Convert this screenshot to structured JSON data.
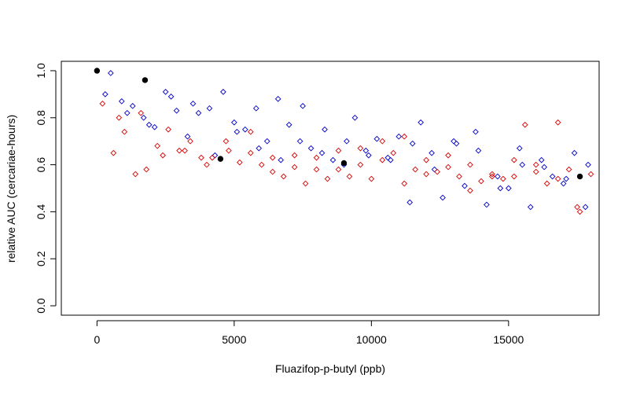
{
  "chart_data": {
    "type": "scatter",
    "xlabel": "Fluazifop-p-butyl (ppb)",
    "ylabel": "relative AUC (cercariae-hours)",
    "xlim": [
      -1300,
      18300
    ],
    "ylim": [
      -0.04,
      1.04
    ],
    "xticks": [
      0,
      5000,
      10000,
      15000
    ],
    "xtick_labels": [
      "0",
      "5000",
      "10000",
      "15000"
    ],
    "yticks": [
      0.0,
      0.2,
      0.4,
      0.6,
      0.8,
      1.0
    ],
    "ytick_labels": [
      "0.0",
      "0.2",
      "0.4",
      "0.6",
      "0.8",
      "1.0"
    ],
    "grid": false,
    "legend": "none",
    "colors": {
      "blue": "#0000cc",
      "red": "#dd0000",
      "observed": "#000000"
    },
    "series": [
      {
        "marker": "open-diamond",
        "color": "blue",
        "x": [
          500,
          900,
          1300,
          1700,
          2100,
          2500,
          2900,
          3300,
          3700,
          4100,
          4600,
          5000,
          5400,
          5800,
          6200,
          6600,
          7000,
          7400,
          7800,
          8200,
          8600,
          9000,
          9400,
          9800,
          10200,
          10600,
          11000,
          11400,
          11800,
          12200,
          12600,
          13000,
          13400,
          13800,
          14200,
          14600,
          15000,
          15400,
          15800,
          16200,
          16600,
          17000,
          17400,
          17800,
          300,
          1100,
          1900,
          2700,
          3500,
          4300,
          5100,
          5900,
          6700,
          7500,
          8300,
          9100,
          9900,
          10700,
          11500,
          12300,
          13100,
          13900,
          14700,
          15500,
          16300,
          17100,
          17900
        ],
        "y": [
          0.99,
          0.87,
          0.85,
          0.8,
          0.76,
          0.91,
          0.83,
          0.72,
          0.82,
          0.84,
          0.91,
          0.78,
          0.75,
          0.84,
          0.7,
          0.88,
          0.77,
          0.7,
          0.67,
          0.65,
          0.62,
          0.6,
          0.8,
          0.66,
          0.71,
          0.63,
          0.72,
          0.44,
          0.78,
          0.65,
          0.46,
          0.7,
          0.51,
          0.74,
          0.43,
          0.55,
          0.5,
          0.67,
          0.42,
          0.62,
          0.55,
          0.52,
          0.65,
          0.42,
          0.9,
          0.82,
          0.77,
          0.89,
          0.86,
          0.64,
          0.74,
          0.67,
          0.62,
          0.85,
          0.75,
          0.7,
          0.64,
          0.62,
          0.69,
          0.58,
          0.69,
          0.66,
          0.5,
          0.6,
          0.59,
          0.54,
          0.6
        ]
      },
      {
        "marker": "open-diamond",
        "color": "red",
        "x": [
          200,
          600,
          1000,
          1400,
          1800,
          2200,
          2600,
          3000,
          3400,
          3800,
          4200,
          4700,
          5200,
          5600,
          6000,
          6400,
          6800,
          7200,
          7600,
          8000,
          8400,
          8800,
          9200,
          9600,
          10000,
          10400,
          10800,
          11200,
          11600,
          12000,
          12400,
          12800,
          13200,
          13600,
          14000,
          14400,
          14800,
          15200,
          15600,
          16000,
          16400,
          16800,
          17200,
          17600,
          18000,
          800,
          1600,
          2400,
          3200,
          4000,
          4800,
          5600,
          6400,
          7200,
          8000,
          8800,
          9600,
          10400,
          11200,
          12000,
          12800,
          13600,
          14400,
          15200,
          16000,
          16800,
          17500
        ],
        "y": [
          0.86,
          0.65,
          0.74,
          0.56,
          0.58,
          0.68,
          0.75,
          0.66,
          0.7,
          0.63,
          0.63,
          0.7,
          0.61,
          0.65,
          0.6,
          0.63,
          0.55,
          0.59,
          0.52,
          0.63,
          0.54,
          0.58,
          0.55,
          0.6,
          0.54,
          0.62,
          0.65,
          0.52,
          0.58,
          0.62,
          0.57,
          0.59,
          0.55,
          0.6,
          0.53,
          0.56,
          0.54,
          0.55,
          0.77,
          0.57,
          0.52,
          0.78,
          0.58,
          0.4,
          0.56,
          0.8,
          0.82,
          0.64,
          0.66,
          0.6,
          0.66,
          0.74,
          0.57,
          0.64,
          0.58,
          0.66,
          0.67,
          0.7,
          0.72,
          0.56,
          0.64,
          0.49,
          0.55,
          0.62,
          0.6,
          0.54,
          0.42
        ]
      },
      {
        "marker": "filled-circle",
        "color": "observed",
        "x": [
          0,
          1750,
          4500,
          9000,
          17600
        ],
        "y": [
          1.0,
          0.96,
          0.625,
          0.607,
          0.55
        ]
      }
    ]
  }
}
